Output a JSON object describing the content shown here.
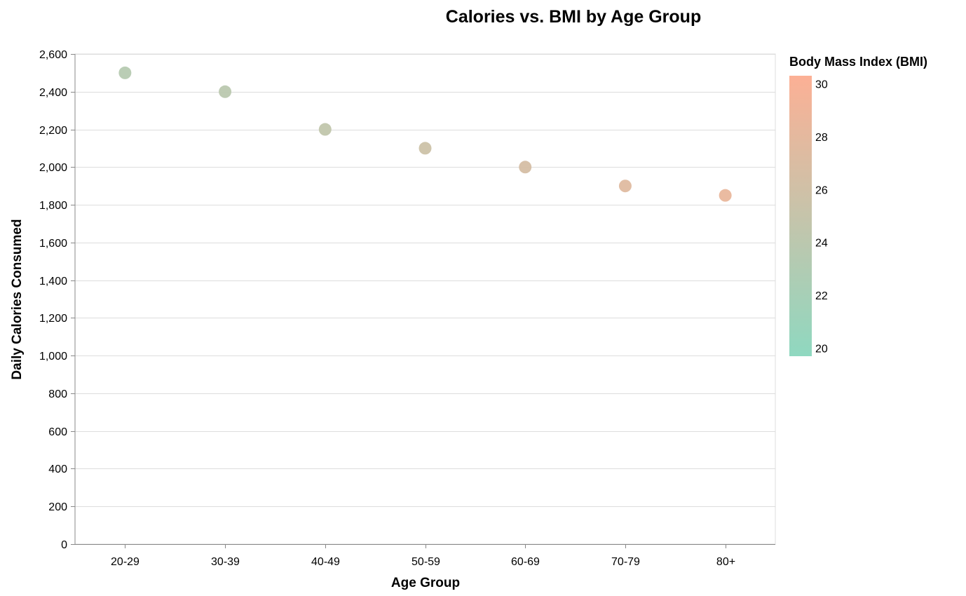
{
  "chart_data": {
    "type": "scatter",
    "title": "Calories vs. BMI by Age Group",
    "xlabel": "Age Group",
    "ylabel": "Daily Calories Consumed",
    "categories": [
      "20-29",
      "30-39",
      "40-49",
      "50-59",
      "60-69",
      "70-79",
      "80+"
    ],
    "y_values": [
      2500,
      2400,
      2200,
      2100,
      2000,
      1900,
      1850
    ],
    "bmi_values": [
      23.5,
      24.0,
      24.6,
      25.6,
      26.5,
      27.5,
      28.5
    ],
    "ylim": [
      0,
      2600
    ],
    "y_ticks": [
      0,
      200,
      400,
      600,
      800,
      1000,
      1200,
      1400,
      1600,
      1800,
      2000,
      2200,
      2400,
      2600
    ],
    "grid": true,
    "legend": {
      "title": "Body Mass Index (BMI)",
      "type": "gradient",
      "placement": "right",
      "domain": [
        19.7,
        30.3
      ],
      "ticks": [
        20,
        22,
        24,
        26,
        28,
        30
      ],
      "color_low": "#8fd8c0",
      "color_high": "#fcb095"
    }
  }
}
